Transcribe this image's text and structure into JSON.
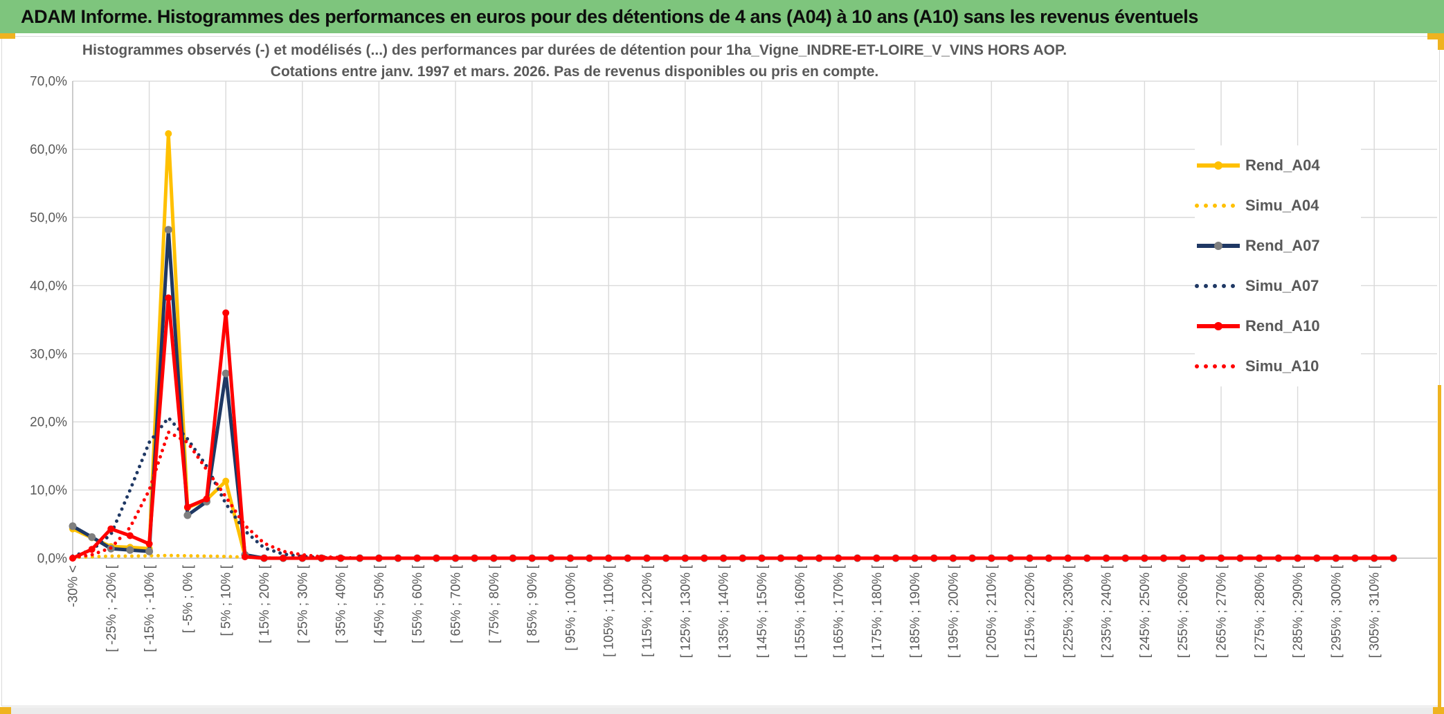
{
  "header": {
    "title": "ADAM Informe. Histogrammes des performances en euros pour des détentions de 4 ans (A04) à 10 ans (A10) sans les revenus éventuels"
  },
  "theme": {
    "green_header_bg": "#7EC57D",
    "orange_accent": "#EFB320",
    "grid_line": "#D9D9D9",
    "axis_line": "#BFBFBF",
    "text_gray": "#595959"
  },
  "chart_data": {
    "type": "line",
    "title_lines": [
      "Histogrammes observés (-) et modélisés (...) des performances par durées de détention pour 1ha_Vigne_INDRE-ET-LOIRE_V_VINS HORS AOP.",
      "Cotations entre janv. 1997 et mars. 2026. Pas de revenus disponibles ou pris en compte."
    ],
    "ylabel": "",
    "xlabel": "",
    "ylim": [
      0,
      70
    ],
    "y_tick_step_pct": 10,
    "y_ticks": [
      "0,0%",
      "10,0%",
      "20,0%",
      "30,0%",
      "40,0%",
      "50,0%",
      "60,0%",
      "70,0%"
    ],
    "grid": {
      "horizontal": true,
      "vertical_every_bins": 4
    },
    "bins_total": 70,
    "x_labels_every_bins": 2,
    "x_labels": [
      "-30% <",
      "[ -25% ; -20% [",
      "[ -15% ; -10% [",
      "[ -5% ; 0% [",
      "[ 5% ; 10% [",
      "[ 15% ; 20% [",
      "[ 25% ; 30% [",
      "[ 35% ; 40% [",
      "[ 45% ; 50% [",
      "[ 55% ; 60% [",
      "[ 65% ; 70% [",
      "[ 75% ; 80% [",
      "[ 85% ; 90% [",
      "[ 95% ; 100% [",
      "[ 105% ; 110% [",
      "[ 115% ; 120% [",
      "[ 125% ; 130% [",
      "[ 135% ; 140% [",
      "[ 145% ; 150% [",
      "[ 155% ; 160% [",
      "[ 165% ; 170% [",
      "[ 175% ; 180% [",
      "[ 185% ; 190% [",
      "[ 195% ; 200% [",
      "[ 205% ; 210% [",
      "[ 215% ; 220% [",
      "[ 225% ; 230% [",
      "[ 235% ; 240% [",
      "[ 245% ; 250% [",
      "[ 255% ; 260% [",
      "[ 265% ; 270% [",
      "[ 275% ; 280% [",
      "[ 285% ; 290% [",
      "[ 295% ; 300% [",
      "[ 305% ; 310% ["
    ],
    "legend_position": "right",
    "series": [
      {
        "name": "Rend_A04",
        "style": "solid",
        "color": "#FFC000",
        "marker": "#FFC000",
        "values": [
          4.3,
          3,
          1.7,
          1.6,
          1.4,
          62.3,
          7.4,
          8.6,
          11.3,
          0.3,
          0,
          0,
          0,
          0,
          0,
          0,
          0,
          0,
          0,
          0,
          0,
          0,
          0,
          0,
          0,
          0,
          0,
          0,
          0,
          0,
          0,
          0,
          0,
          0,
          0,
          0,
          0,
          0,
          0,
          0,
          0,
          0,
          0,
          0,
          0,
          0,
          0,
          0,
          0,
          0,
          0,
          0,
          0,
          0,
          0,
          0,
          0,
          0,
          0,
          0,
          0,
          0,
          0,
          0,
          0,
          0,
          0,
          0,
          0,
          0
        ]
      },
      {
        "name": "Simu_A04",
        "style": "dotted",
        "color": "#FFC000",
        "marker": null,
        "values": [
          0.1,
          0.2,
          0.3,
          0.3,
          0.35,
          0.4,
          0.35,
          0.3,
          0.25,
          0.15,
          0.05,
          0,
          0,
          0,
          0,
          0,
          0,
          0,
          0,
          0,
          0,
          0,
          0,
          0,
          0,
          0,
          0,
          0,
          0,
          0,
          0,
          0,
          0,
          0,
          0,
          0,
          0,
          0,
          0,
          0,
          0,
          0,
          0,
          0,
          0,
          0,
          0,
          0,
          0,
          0,
          0,
          0,
          0,
          0,
          0,
          0,
          0,
          0,
          0,
          0,
          0,
          0,
          0,
          0,
          0,
          0,
          0,
          0,
          0,
          0
        ]
      },
      {
        "name": "Rend_A07",
        "style": "solid",
        "color": "#1F3864",
        "marker": "#7F7F7F",
        "values": [
          4.7,
          3.1,
          1.4,
          1.2,
          1,
          48.2,
          6.3,
          8.3,
          27.1,
          0.5,
          0,
          0,
          0,
          0,
          0,
          0,
          0,
          0,
          0,
          0,
          0,
          0,
          0,
          0,
          0,
          0,
          0,
          0,
          0,
          0,
          0,
          0,
          0,
          0,
          0,
          0,
          0,
          0,
          0,
          0,
          0,
          0,
          0,
          0,
          0,
          0,
          0,
          0,
          0,
          0,
          0,
          0,
          0,
          0,
          0,
          0,
          0,
          0,
          0,
          0,
          0,
          0,
          0,
          0,
          0,
          0,
          0,
          0,
          0,
          0
        ]
      },
      {
        "name": "Simu_A07",
        "style": "dotted",
        "color": "#1F3864",
        "marker": null,
        "values": [
          0.3,
          1.2,
          3.5,
          10,
          17,
          20.6,
          17.5,
          13.5,
          8,
          4,
          1.5,
          0.6,
          0.25,
          0.1,
          0,
          0,
          0,
          0,
          0,
          0,
          0,
          0,
          0,
          0,
          0,
          0,
          0,
          0,
          0,
          0,
          0,
          0,
          0,
          0,
          0,
          0,
          0,
          0,
          0,
          0,
          0,
          0,
          0,
          0,
          0,
          0,
          0,
          0,
          0,
          0,
          0,
          0,
          0,
          0,
          0,
          0,
          0,
          0,
          0,
          0,
          0,
          0,
          0,
          0,
          0,
          0,
          0,
          0,
          0,
          0
        ]
      },
      {
        "name": "Rend_A10",
        "style": "solid",
        "color": "#FF0000",
        "marker": "#FF0000",
        "values": [
          0,
          1.3,
          4.3,
          3.3,
          2.1,
          38.2,
          7.5,
          8.7,
          36,
          0.2,
          0,
          0,
          0,
          0,
          0,
          0,
          0,
          0,
          0,
          0,
          0,
          0,
          0,
          0,
          0,
          0,
          0,
          0,
          0,
          0,
          0,
          0,
          0,
          0,
          0,
          0,
          0,
          0,
          0,
          0,
          0,
          0,
          0,
          0,
          0,
          0,
          0,
          0,
          0,
          0,
          0,
          0,
          0,
          0,
          0,
          0,
          0,
          0,
          0,
          0,
          0,
          0,
          0,
          0,
          0,
          0,
          0,
          0,
          0,
          0
        ]
      },
      {
        "name": "Simu_A10",
        "style": "dotted",
        "color": "#FF0000",
        "marker": null,
        "values": [
          0.1,
          0.5,
          1.5,
          4.5,
          10,
          18.5,
          17,
          13,
          9,
          4.8,
          2.2,
          1,
          0.5,
          0.2,
          0.1,
          0,
          0,
          0,
          0,
          0,
          0,
          0,
          0,
          0,
          0,
          0,
          0,
          0,
          0,
          0,
          0,
          0,
          0,
          0,
          0,
          0,
          0,
          0,
          0,
          0,
          0,
          0,
          0,
          0,
          0,
          0,
          0,
          0,
          0,
          0,
          0,
          0,
          0,
          0,
          0,
          0,
          0,
          0,
          0,
          0,
          0,
          0,
          0,
          0,
          0,
          0,
          0,
          0,
          0,
          0
        ]
      }
    ]
  }
}
